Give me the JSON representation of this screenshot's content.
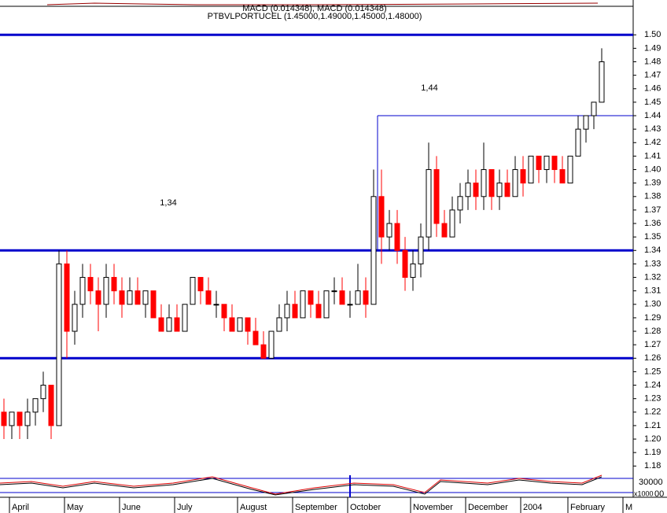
{
  "chart_data": {
    "type": "candlestick",
    "top_panel": "MACD (0.014348), MACD (0.014348)",
    "title": "PTBVLPORTUCEL (1.45000,1.49000,1.45000,1.48000)",
    "categories": [
      null,
      "April",
      null,
      null,
      null,
      null,
      null,
      null,
      "May",
      null,
      null,
      null,
      null,
      null,
      null,
      "June",
      null,
      null,
      null,
      null,
      null,
      null,
      "July",
      null,
      null,
      null,
      null,
      null,
      null,
      null,
      "August",
      null,
      null,
      null,
      null,
      null,
      null,
      "September",
      null,
      null,
      null,
      null,
      null,
      null,
      "October",
      null,
      null,
      null,
      null,
      null,
      null,
      null,
      "November",
      null,
      null,
      null,
      null,
      null,
      null,
      "December",
      null,
      null,
      null,
      null,
      null,
      null,
      "2004",
      null,
      null,
      null,
      null,
      null,
      "February",
      null,
      null,
      null,
      null,
      null,
      null,
      "M"
    ],
    "open": [
      1.22,
      1.21,
      1.22,
      1.21,
      1.22,
      1.23,
      1.24,
      1.21,
      1.33,
      1.28,
      1.3,
      1.32,
      1.31,
      1.3,
      1.32,
      1.31,
      1.3,
      1.31,
      1.3,
      1.31,
      1.29,
      1.28,
      1.29,
      1.28,
      1.3,
      1.32,
      1.31,
      1.3,
      1.3,
      1.29,
      1.28,
      1.29,
      1.28,
      1.27,
      1.26,
      1.28,
      1.29,
      1.3,
      1.29,
      1.31,
      1.3,
      1.29,
      1.31,
      1.31,
      1.3,
      1.3,
      1.31,
      1.3,
      1.38,
      1.35,
      1.36,
      1.34,
      1.32,
      1.33,
      1.35,
      1.4,
      1.36,
      1.35,
      1.37,
      1.38,
      1.39,
      1.38,
      1.4,
      1.38,
      1.39,
      1.38,
      1.4,
      1.39,
      1.41,
      1.4,
      1.41,
      1.4,
      1.39,
      1.41,
      1.43,
      1.44,
      1.45,
      null,
      null,
      null
    ],
    "high": [
      1.23,
      1.22,
      1.22,
      1.23,
      1.23,
      1.25,
      1.24,
      1.34,
      1.34,
      1.31,
      1.33,
      1.33,
      1.32,
      1.33,
      1.33,
      1.32,
      1.32,
      1.32,
      1.31,
      1.31,
      1.3,
      1.3,
      1.3,
      1.3,
      1.32,
      1.32,
      1.32,
      1.31,
      1.3,
      1.3,
      1.29,
      1.29,
      1.29,
      1.28,
      1.28,
      1.3,
      1.31,
      1.31,
      1.31,
      1.31,
      1.31,
      1.31,
      1.32,
      1.32,
      1.31,
      1.33,
      1.32,
      1.4,
      1.4,
      1.37,
      1.37,
      1.35,
      1.34,
      1.36,
      1.42,
      1.41,
      1.37,
      1.38,
      1.39,
      1.4,
      1.4,
      1.42,
      1.4,
      1.4,
      1.4,
      1.41,
      1.41,
      1.41,
      1.41,
      1.41,
      1.41,
      1.41,
      1.41,
      1.44,
      1.44,
      1.45,
      1.49,
      null,
      null,
      null
    ],
    "low": [
      1.2,
      1.2,
      1.2,
      1.2,
      1.21,
      1.22,
      1.2,
      1.21,
      1.26,
      1.27,
      1.29,
      1.3,
      1.28,
      1.29,
      1.3,
      1.29,
      1.3,
      1.3,
      1.29,
      1.29,
      1.28,
      1.28,
      1.28,
      1.28,
      1.3,
      1.3,
      1.3,
      1.29,
      1.28,
      1.28,
      1.28,
      1.27,
      1.27,
      1.26,
      1.26,
      1.28,
      1.28,
      1.29,
      1.29,
      1.29,
      1.29,
      1.29,
      1.3,
      1.3,
      1.29,
      1.3,
      1.29,
      1.3,
      1.33,
      1.34,
      1.33,
      1.31,
      1.31,
      1.32,
      1.34,
      1.35,
      1.35,
      1.35,
      1.36,
      1.37,
      1.37,
      1.37,
      1.37,
      1.37,
      1.38,
      1.38,
      1.38,
      1.39,
      1.39,
      1.39,
      1.39,
      1.39,
      1.39,
      1.41,
      1.42,
      1.43,
      1.45,
      null,
      null,
      null
    ],
    "close": [
      1.21,
      1.22,
      1.21,
      1.22,
      1.23,
      1.24,
      1.21,
      1.33,
      1.28,
      1.3,
      1.32,
      1.31,
      1.3,
      1.32,
      1.31,
      1.3,
      1.31,
      1.3,
      1.31,
      1.29,
      1.28,
      1.29,
      1.28,
      1.3,
      1.32,
      1.31,
      1.3,
      1.3,
      1.29,
      1.28,
      1.29,
      1.28,
      1.27,
      1.26,
      1.28,
      1.29,
      1.3,
      1.29,
      1.31,
      1.3,
      1.29,
      1.31,
      1.31,
      1.3,
      1.3,
      1.31,
      1.3,
      1.38,
      1.35,
      1.36,
      1.34,
      1.32,
      1.33,
      1.35,
      1.4,
      1.36,
      1.35,
      1.37,
      1.38,
      1.39,
      1.38,
      1.4,
      1.38,
      1.39,
      1.38,
      1.4,
      1.39,
      1.41,
      1.4,
      1.41,
      1.4,
      1.39,
      1.41,
      1.43,
      1.44,
      1.45,
      1.48,
      null,
      null,
      null
    ],
    "up_color": "#000000",
    "down_color": "#ff0000",
    "level_color": "#0000cc",
    "levels": [
      {
        "value": 1.5
      },
      {
        "value": 1.34,
        "label": "1,34"
      },
      {
        "value": 1.26
      },
      {
        "value": 1.44,
        "label": "1,44"
      }
    ],
    "ylim": [
      1.172,
      1.513
    ],
    "yticks": [
      {
        "value": 1.18,
        "label": "1.18"
      },
      {
        "value": 1.19,
        "label": "1.19"
      },
      {
        "value": 1.2,
        "label": "1.20"
      },
      {
        "value": 1.21,
        "label": "1.21"
      },
      {
        "value": 1.22,
        "label": "1.22"
      },
      {
        "value": 1.23,
        "label": "1.23"
      },
      {
        "value": 1.24,
        "label": "1.24"
      },
      {
        "value": 1.25,
        "label": "1.25"
      },
      {
        "value": 1.26,
        "label": "1.26"
      },
      {
        "value": 1.27,
        "label": "1.27"
      },
      {
        "value": 1.28,
        "label": "1.28"
      },
      {
        "value": 1.29,
        "label": "1.29"
      },
      {
        "value": 1.3,
        "label": "1.30"
      },
      {
        "value": 1.31,
        "label": "1.31"
      },
      {
        "value": 1.32,
        "label": "1.32"
      },
      {
        "value": 1.33,
        "label": "1.33"
      },
      {
        "value": 1.34,
        "label": "1.34"
      },
      {
        "value": 1.35,
        "label": "1.35"
      },
      {
        "value": 1.36,
        "label": "1.36"
      },
      {
        "value": 1.37,
        "label": "1.37"
      },
      {
        "value": 1.38,
        "label": "1.38"
      },
      {
        "value": 1.39,
        "label": "1.39"
      },
      {
        "value": 1.4,
        "label": "1.40"
      },
      {
        "value": 1.41,
        "label": "1.41"
      },
      {
        "value": 1.42,
        "label": "1.42"
      },
      {
        "value": 1.43,
        "label": "1.43"
      },
      {
        "value": 1.44,
        "label": "1.44"
      },
      {
        "value": 1.45,
        "label": "1.45"
      },
      {
        "value": 1.46,
        "label": "1.46"
      },
      {
        "value": 1.47,
        "label": "1.47"
      },
      {
        "value": 1.48,
        "label": "1.48"
      },
      {
        "value": 1.49,
        "label": "1.49"
      },
      {
        "value": 1.5,
        "label": "1.50"
      }
    ],
    "bottom_panel": {
      "top_label": "30000",
      "unit_label": "x1000",
      "bottom_label": "00"
    }
  }
}
